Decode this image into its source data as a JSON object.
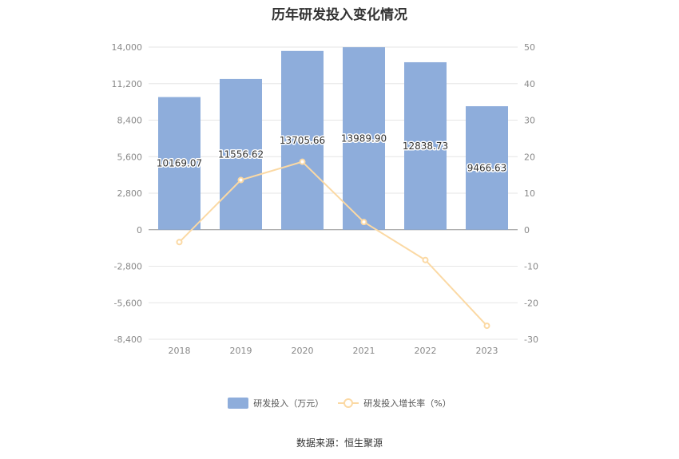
{
  "title": "历年研发投入变化情况",
  "source": "数据来源：恒生聚源",
  "colors": {
    "bar": "#8eaddb",
    "line": "#fbd9a4",
    "axis_text": "#888888",
    "grid": "#e6e6e6"
  },
  "chart_data": {
    "type": "bar",
    "categories": [
      "2018",
      "2019",
      "2020",
      "2021",
      "2022",
      "2023"
    ],
    "series": [
      {
        "name": "研发投入（万元）",
        "type": "bar",
        "axis": "left",
        "values": [
          10169.07,
          11556.62,
          13705.66,
          13989.9,
          12838.73,
          9466.63
        ],
        "labels": [
          "10169.07",
          "11556.62",
          "13705.66",
          "13989.90",
          "12838.73",
          "9466.63"
        ]
      },
      {
        "name": "研发投入增长率（%）",
        "type": "line",
        "axis": "right",
        "values": [
          -3.4,
          13.6,
          18.6,
          2.1,
          -8.3,
          -26.3
        ]
      }
    ],
    "y_left": {
      "min": -8400,
      "max": 14000,
      "ticks": [
        "14,000",
        "11,200",
        "8,400",
        "5,600",
        "2,800",
        "0",
        "-2,800",
        "-5,600",
        "-8,400"
      ]
    },
    "y_right": {
      "min": -30,
      "max": 50,
      "ticks": [
        "50",
        "40",
        "30",
        "20",
        "10",
        "0",
        "-10",
        "-20",
        "-30"
      ]
    },
    "grid": true,
    "legend_position": "bottom"
  }
}
